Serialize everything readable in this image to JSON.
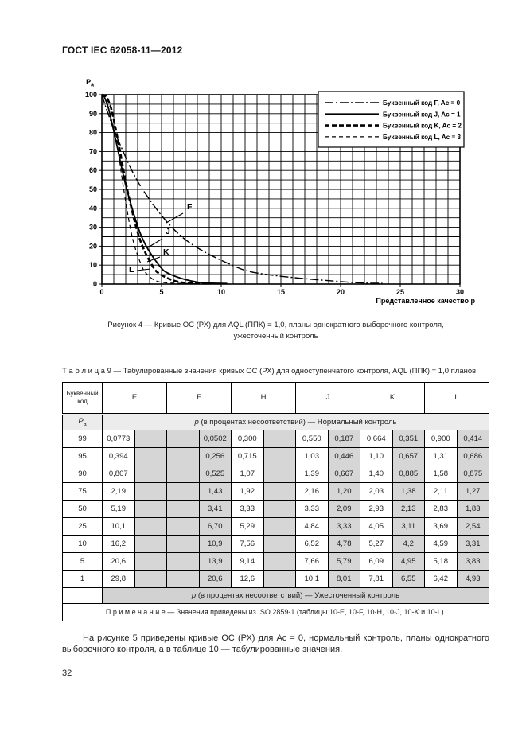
{
  "header": {
    "title": "ГОСТ IEC 62058-11—2012"
  },
  "figure": {
    "caption_line1": "Рисунок 4 — Кривые ОС (РХ) для AQL (ППК) = 1,0, планы однократного выборочного контроля,",
    "caption_line2": "ужесточенный контроль"
  },
  "chart_data": {
    "type": "line",
    "title": "",
    "xlabel": "Представленное качество p",
    "ylabel": "Pa",
    "xlim": [
      0,
      30
    ],
    "ylim": [
      0,
      100
    ],
    "x_ticks": [
      0,
      5,
      10,
      15,
      20,
      25,
      30
    ],
    "y_ticks": [
      0,
      10,
      20,
      30,
      40,
      50,
      60,
      70,
      80,
      90,
      100
    ],
    "grid": {
      "on": true,
      "x_step": 1,
      "y_step": 5
    },
    "legend_position": "top-right",
    "series": [
      {
        "label": "F",
        "legend": "Буквенный код F, Ac = 0",
        "style": "dashdot",
        "points": [
          [
            0,
            100
          ],
          [
            0.0502,
            99
          ],
          [
            0.256,
            95
          ],
          [
            0.525,
            90
          ],
          [
            1.43,
            75
          ],
          [
            3.41,
            50
          ],
          [
            6.7,
            25
          ],
          [
            10.9,
            10
          ],
          [
            13.9,
            5
          ],
          [
            20.6,
            1
          ],
          [
            23.5,
            0.4
          ]
        ]
      },
      {
        "label": "J",
        "legend": "Буквенный код J, Ac = 1",
        "style": "solid",
        "points": [
          [
            0,
            100
          ],
          [
            0.187,
            99
          ],
          [
            0.446,
            95
          ],
          [
            0.667,
            90
          ],
          [
            1.2,
            75
          ],
          [
            2.09,
            50
          ],
          [
            3.33,
            25
          ],
          [
            4.78,
            10
          ],
          [
            5.79,
            5
          ],
          [
            8.01,
            1
          ],
          [
            10.5,
            0.3
          ]
        ]
      },
      {
        "label": "K",
        "legend": "Буквенный код K, Ac = 2",
        "style": "bolddash",
        "points": [
          [
            0,
            100
          ],
          [
            0.351,
            99
          ],
          [
            0.657,
            95
          ],
          [
            0.885,
            90
          ],
          [
            1.38,
            75
          ],
          [
            2.13,
            50
          ],
          [
            3.11,
            25
          ],
          [
            4.2,
            10
          ],
          [
            4.95,
            5
          ],
          [
            6.55,
            1
          ],
          [
            9.0,
            0.25
          ]
        ]
      },
      {
        "label": "L",
        "legend": "Буквенный код L, Ac = 3",
        "style": "dashed",
        "points": [
          [
            0,
            100
          ],
          [
            0.414,
            99
          ],
          [
            0.686,
            95
          ],
          [
            0.875,
            90
          ],
          [
            1.27,
            75
          ],
          [
            1.83,
            50
          ],
          [
            2.54,
            25
          ],
          [
            3.31,
            10
          ],
          [
            3.83,
            5
          ],
          [
            4.93,
            1
          ],
          [
            8.0,
            0.2
          ]
        ]
      }
    ]
  },
  "table": {
    "title": "Т а б л и ц а  9 — Табулированные значения кривых ОС (РХ) для одноступенчатого контроля, AQL (ППК) = 1,0 планов",
    "corner_header": "Буквенный код",
    "letters": [
      "E",
      "F",
      "H",
      "J",
      "K",
      "L"
    ],
    "pa_symbol": "P",
    "pa_sub": "a",
    "p_symbol": "p",
    "normal_header": " (в процентах несоответствий) — Нормальный контроль",
    "tightened_header": " (в процентах несоответствий) — Ужесточенный контроль",
    "note": "П р и м е ч а н и е  — Значения приведены из ISO 2859-1 (таблицы 10-E, 10-F, 10-H, 10-J, 10-K и 10-L).",
    "gray_columns": [
      1,
      2,
      3,
      5,
      7,
      9,
      11
    ],
    "rows": [
      {
        "pa": "99",
        "cells": [
          "0,0773",
          "",
          "",
          "0,0502",
          "0,300",
          "",
          "0,550",
          "0,187",
          "0,664",
          "0,351",
          "0,900",
          "0,414"
        ]
      },
      {
        "pa": "95",
        "cells": [
          "0,394",
          "",
          "",
          "0,256",
          "0,715",
          "",
          "1,03",
          "0,446",
          "1,10",
          "0,657",
          "1,31",
          "0,686"
        ]
      },
      {
        "pa": "90",
        "cells": [
          "0,807",
          "",
          "",
          "0,525",
          "1,07",
          "",
          "1,39",
          "0,667",
          "1,40",
          "0,885",
          "1,58",
          "0,875"
        ]
      },
      {
        "pa": "75",
        "cells": [
          "2,19",
          "",
          "",
          "1,43",
          "1,92",
          "",
          "2,16",
          "1,20",
          "2,03",
          "1,38",
          "2,11",
          "1,27"
        ]
      },
      {
        "pa": "50",
        "cells": [
          "5,19",
          "",
          "",
          "3,41",
          "3,33",
          "",
          "3,33",
          "2,09",
          "2,93",
          "2,13",
          "2,83",
          "1,83"
        ]
      },
      {
        "pa": "25",
        "cells": [
          "10,1",
          "",
          "",
          "6,70",
          "5,29",
          "",
          "4,84",
          "3,33",
          "4,05",
          "3,11",
          "3,69",
          "2,54"
        ]
      },
      {
        "pa": "10",
        "cells": [
          "16,2",
          "",
          "",
          "10,9",
          "7,56",
          "",
          "6,52",
          "4,78",
          "5,27",
          "4,2",
          "4,59",
          "3,31"
        ]
      },
      {
        "pa": "5",
        "cells": [
          "20,6",
          "",
          "",
          "13,9",
          "9,14",
          "",
          "7,66",
          "5,79",
          "6,09",
          "4,95",
          "5,18",
          "3,83"
        ]
      },
      {
        "pa": "1",
        "cells": [
          "29,8",
          "",
          "",
          "20,6",
          "12,6",
          "",
          "10,1",
          "8,01",
          "7,81",
          "6,55",
          "6,42",
          "4,93"
        ]
      }
    ]
  },
  "paragraph": {
    "text": "На рисунке 5 приведены кривые ОС (РХ) для Ac = 0, нормальный контроль, планы однократного выборочного контроля, а в таблице 10 — табулированные значения."
  },
  "footer": {
    "page_number": "32"
  }
}
